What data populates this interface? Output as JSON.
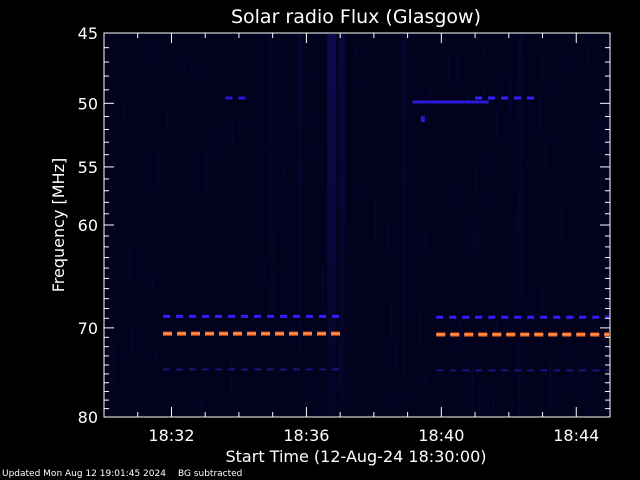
{
  "chart_data": {
    "type": "heatmap",
    "title": "Solar radio Flux (Glasgow)",
    "xlabel": "Start Time (12-Aug-24 18:30:00)",
    "ylabel": "Frequency [MHz]",
    "x_range_minutes": [
      0,
      15
    ],
    "x_ticks": [
      {
        "minute": 2,
        "label": "18:32"
      },
      {
        "minute": 6,
        "label": "18:36"
      },
      {
        "minute": 10,
        "label": "18:40"
      },
      {
        "minute": 14,
        "label": "18:44"
      }
    ],
    "y_scale": "log",
    "ylim": [
      45,
      80
    ],
    "y_inverted": true,
    "y_ticks": [
      {
        "value": 45,
        "label": "45"
      },
      {
        "value": 50,
        "label": "50"
      },
      {
        "value": 55,
        "label": "55"
      },
      {
        "value": 60,
        "label": "60"
      },
      {
        "value": 70,
        "label": "70"
      },
      {
        "value": 80,
        "label": "80"
      }
    ],
    "background_color": "#02021e",
    "bands": [
      {
        "freq_mhz": 68.8,
        "start_min": 1.75,
        "end_min": 7.05,
        "intensity": "medium",
        "color": "#3a1bff",
        "style": "dashed"
      },
      {
        "freq_mhz": 70.6,
        "start_min": 1.75,
        "end_min": 7.05,
        "intensity": "high",
        "color": "#ff6a20",
        "style": "dashed"
      },
      {
        "freq_mhz": 74.5,
        "start_min": 1.75,
        "end_min": 7.05,
        "intensity": "low",
        "color": "#1a1a8a",
        "style": "dashed"
      },
      {
        "freq_mhz": 68.9,
        "start_min": 9.85,
        "end_min": 15,
        "intensity": "medium",
        "color": "#3a1bff",
        "style": "dashed"
      },
      {
        "freq_mhz": 70.7,
        "start_min": 9.85,
        "end_min": 15,
        "intensity": "high",
        "color": "#ff6a20",
        "style": "dashed"
      },
      {
        "freq_mhz": 74.6,
        "start_min": 9.85,
        "end_min": 15,
        "intensity": "low",
        "color": "#1a1a8a",
        "style": "dashed"
      },
      {
        "freq_mhz": 49.9,
        "start_min": 9.15,
        "end_min": 11.4,
        "intensity": "medium",
        "color": "#2a18d8",
        "style": "solid"
      },
      {
        "freq_mhz": 49.6,
        "start_min": 11.0,
        "end_min": 12.9,
        "intensity": "medium",
        "color": "#3320ff",
        "style": "dashed"
      },
      {
        "freq_mhz": 49.6,
        "start_min": 3.6,
        "end_min": 4.3,
        "intensity": "medium",
        "color": "#2a18d8",
        "style": "dashed"
      }
    ],
    "bright_spots": [
      {
        "minute": 9.45,
        "freq_mhz": 51.2,
        "color": "#2a18d8"
      }
    ],
    "vertical_streaks": [
      {
        "minute": 6.75,
        "intensity": "high"
      },
      {
        "minute": 7.05,
        "intensity": "medium"
      },
      {
        "minute": 4.95,
        "intensity": "low"
      },
      {
        "minute": 5.8,
        "intensity": "low"
      },
      {
        "minute": 8.9,
        "intensity": "low"
      },
      {
        "minute": 12.35,
        "intensity": "low"
      }
    ]
  },
  "footer": {
    "updated": "Updated Mon Aug 12 19:01:45 2024",
    "note": "BG subtracted"
  }
}
